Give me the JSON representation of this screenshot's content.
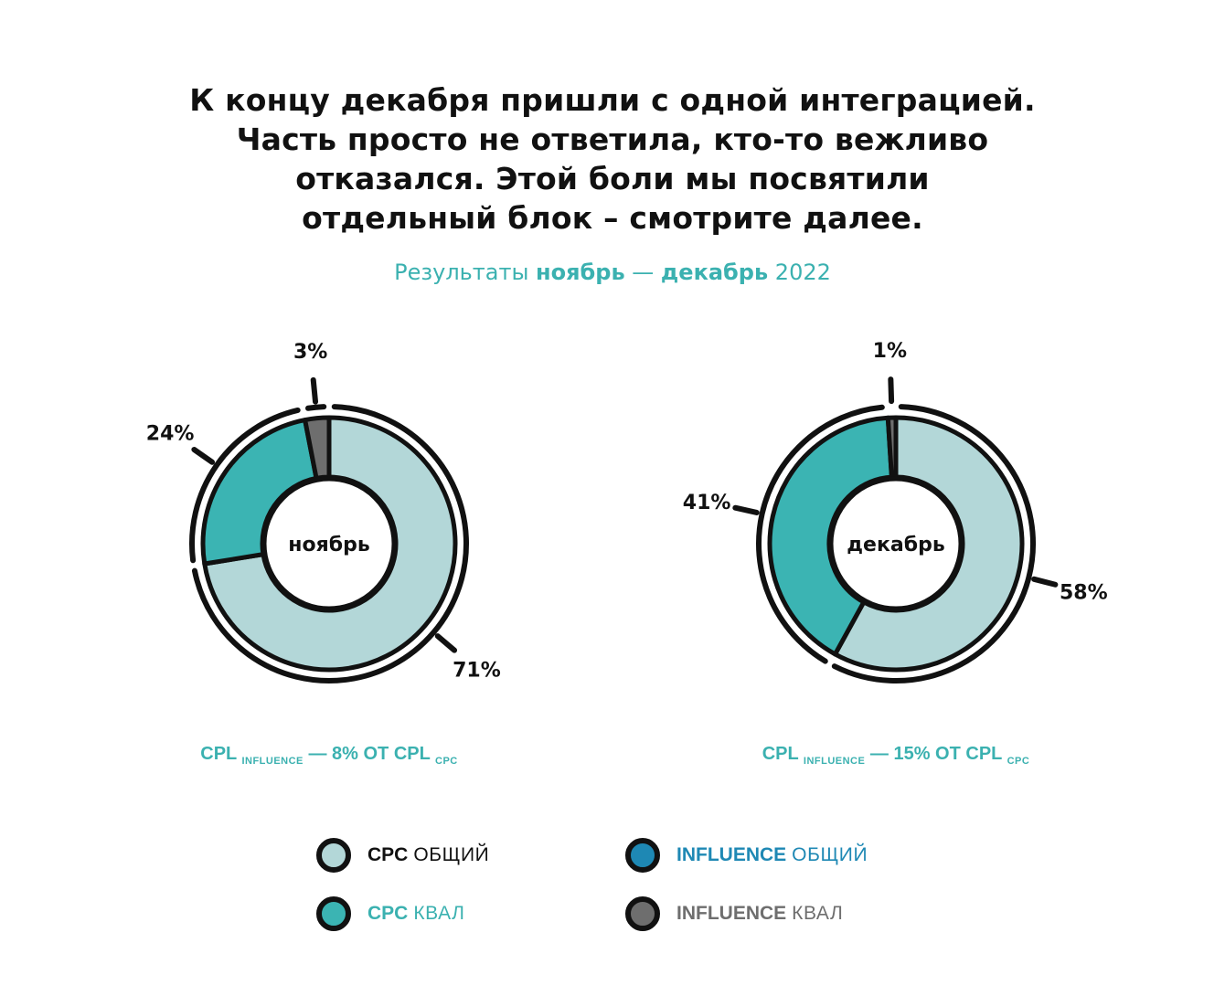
{
  "headline": {
    "line1": "К концу декабря пришли с одной интеграцией.",
    "line2": "Часть просто не ответила, кто-то вежливо",
    "line3": "отказался. Этой боли мы посвятили",
    "line4": "отдельный блок – смотрите далее."
  },
  "subtitle": {
    "prefix": "Результаты ",
    "range_start": "ноябрь",
    "dash": " — ",
    "range_end": "декабрь",
    "year": " 2022"
  },
  "colors": {
    "cpc_total": "#b3d7d8",
    "cpc_qual": "#3bb4b3",
    "influence_total": "#1e88b4",
    "influence_qual": "#6e6e6e",
    "accent_text": "#3bb1b0"
  },
  "chart_data": [
    {
      "type": "pie",
      "center_label": "ноябрь",
      "slices": [
        {
          "series": "CPC общий",
          "value": 71,
          "label": "71%"
        },
        {
          "series": "CPC квал",
          "value": 24,
          "label": "24%"
        },
        {
          "series": "Influence квал",
          "value": 3,
          "label": "3%"
        }
      ],
      "note": {
        "cpl": "CPL",
        "influence": "INFLUENCE",
        "text": " — 8% ОТ ",
        "cpl2": "CPL",
        "cpc": "CPC"
      }
    },
    {
      "type": "pie",
      "center_label": "декабрь",
      "slices": [
        {
          "series": "CPC общий",
          "value": 58,
          "label": "58%"
        },
        {
          "series": "CPC квал",
          "value": 41,
          "label": "41%"
        },
        {
          "series": "Influence квал",
          "value": 1,
          "label": "1%"
        }
      ],
      "note": {
        "cpl": "CPL",
        "influence": "INFLUENCE",
        "text": " — 15% ОТ ",
        "cpl2": "CPL",
        "cpc": "CPC"
      }
    }
  ],
  "legend": [
    {
      "bold": "CPC",
      "rest": "ОБЩИЙ",
      "color": "#b3d7d8",
      "text_color": "#111111",
      "rest_color": "#111111"
    },
    {
      "bold": "INFLUENCE",
      "rest": "ОБЩИЙ",
      "color": "#1e88b4",
      "text_color": "#1e88b4",
      "rest_color": "#1e88b4"
    },
    {
      "bold": "CPC",
      "rest": "КВАЛ",
      "color": "#3bb4b3",
      "text_color": "#3bb1b0",
      "rest_color": "#3bb1b0"
    },
    {
      "bold": "INFLUENCE",
      "rest": "КВАЛ",
      "color": "#6e6e6e",
      "text_color": "#6e6e6e",
      "rest_color": "#6e6e6e"
    }
  ]
}
